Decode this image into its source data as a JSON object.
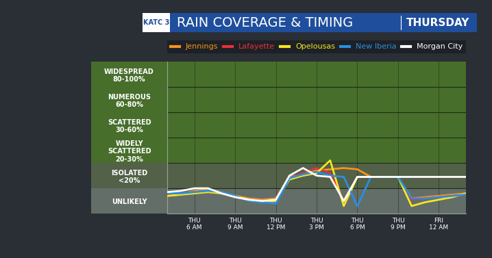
{
  "logo": "KATC 3",
  "chart_data": {
    "type": "line",
    "title": "RAIN COVERAGE & TIMING",
    "subtitle": "THURSDAY",
    "x": [
      4,
      5,
      6,
      7,
      8,
      9,
      10,
      11,
      12,
      13,
      14,
      15,
      16,
      17,
      18,
      19,
      20,
      21,
      22,
      23,
      24,
      25,
      26
    ],
    "xlim": [
      4,
      26
    ],
    "xticks": [
      {
        "value": 6,
        "label": "THU\n6 AM"
      },
      {
        "value": 9,
        "label": "THU\n9 AM"
      },
      {
        "value": 12,
        "label": "THU\n12 PM"
      },
      {
        "value": 15,
        "label": "THU\n3 PM"
      },
      {
        "value": 18,
        "label": "THU\n6 PM"
      },
      {
        "value": 21,
        "label": "THU\n9 PM"
      },
      {
        "value": 24,
        "label": "FRI\n12 AM"
      }
    ],
    "ylim": [
      0,
      6
    ],
    "yticks": [
      {
        "value": 0.5,
        "label": "UNLIKELY"
      },
      {
        "value": 1.5,
        "label": "ISOLATED\n<20%"
      },
      {
        "value": 2.5,
        "label": "WIDELY\nSCATTERED\n20-30%"
      },
      {
        "value": 3.5,
        "label": "SCATTERED\n30-60%"
      },
      {
        "value": 4.5,
        "label": "NUMEROUS\n60-80%"
      },
      {
        "value": 5.5,
        "label": "WIDESPREAD\n80-100%"
      }
    ],
    "grid": true,
    "legend": "upper center",
    "series": [
      {
        "name": "Jennings",
        "color": "#f7941d",
        "values": [
          0.7,
          0.75,
          0.9,
          0.95,
          0.85,
          0.7,
          0.6,
          0.55,
          0.6,
          1.45,
          1.55,
          1.7,
          1.75,
          1.8,
          1.75,
          1.45,
          1.45,
          1.45,
          0.6,
          0.65,
          0.7,
          0.75,
          0.8
        ]
      },
      {
        "name": "Lafayette",
        "color": "#e8303a",
        "values": [
          0.75,
          0.8,
          0.85,
          0.9,
          0.8,
          0.65,
          0.55,
          0.5,
          0.55,
          1.4,
          1.6,
          1.8,
          1.6,
          0.5,
          1.45,
          1.45,
          1.45,
          1.45,
          0.55,
          0.6,
          0.65,
          0.7,
          0.75
        ]
      },
      {
        "name": "Opelousas",
        "color": "#f5e625",
        "values": [
          0.7,
          0.75,
          0.8,
          0.85,
          0.8,
          0.7,
          0.55,
          0.45,
          0.5,
          1.35,
          1.5,
          1.6,
          2.1,
          0.3,
          1.45,
          1.45,
          1.45,
          1.45,
          0.3,
          0.45,
          0.55,
          0.65,
          0.8
        ]
      },
      {
        "name": "New Iberia",
        "color": "#2a8fe0",
        "values": [
          0.8,
          0.8,
          0.85,
          0.9,
          0.85,
          0.7,
          0.5,
          0.45,
          0.4,
          1.4,
          1.55,
          1.65,
          1.5,
          1.45,
          0.3,
          1.45,
          1.45,
          1.45,
          0.6,
          0.6,
          0.65,
          0.7,
          0.75
        ]
      },
      {
        "name": "Morgan City",
        "color": "#ffffff",
        "values": [
          0.85,
          0.9,
          1.0,
          1.0,
          0.8,
          0.65,
          0.55,
          0.5,
          0.55,
          1.5,
          1.8,
          1.5,
          1.45,
          0.5,
          1.45,
          1.45,
          1.45,
          1.45,
          1.45,
          1.45,
          1.45,
          1.45,
          1.45
        ]
      }
    ]
  }
}
